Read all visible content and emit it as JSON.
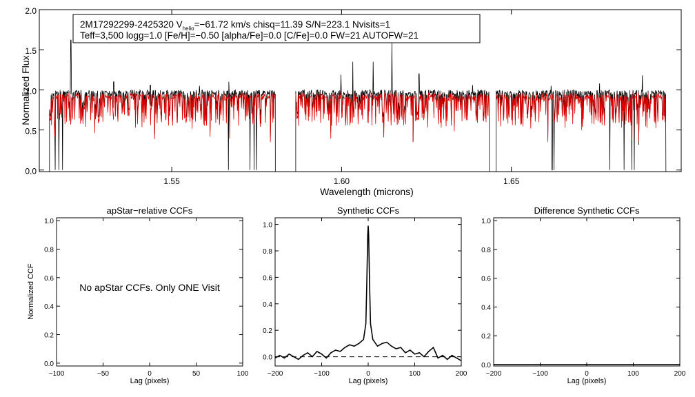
{
  "figure": {
    "info_box": {
      "line1": {
        "star_id": "2M17292299-2425320",
        "v_prefix": "V",
        "v_subscript": "helio",
        "after_v": "=−61.72 km/s  chisq=11.39  S/N=223.1  Nvisits=1"
      },
      "line2": "Teff=3,500 logg=1.0 [Fe/H]=−0.50 [alpha/Fe]=0.0 [C/Fe]=0.0 FW=21 AUTOFW=21"
    },
    "panel_titles": {
      "apstar": "apStar−relative CCFs",
      "synthetic": "Synthetic CCFs",
      "difference": "Difference Synthetic CCFs"
    },
    "apstar_note": "No apStar CCFs.  Only ONE Visit"
  },
  "chart_data": [
    {
      "id": "spectrum",
      "type": "line",
      "title": "",
      "xlabel": "Wavelength (microns)",
      "ylabel": "Normalized Flux",
      "xlim": [
        1.511,
        1.7
      ],
      "ylim": [
        -0.02,
        2.0
      ],
      "xticks": [
        1.55,
        1.6,
        1.65
      ],
      "xtick_labels": [
        "1.55",
        "1.60",
        "1.65"
      ],
      "yticks": [
        0.0,
        0.5,
        1.0,
        1.5,
        2.0
      ],
      "ytick_labels": [
        "0.0",
        "0.5",
        "1.0",
        "1.5",
        "2.0"
      ],
      "segments": [
        [
          1.514,
          1.5805
        ],
        [
          1.5865,
          1.6435
        ],
        [
          1.6455,
          1.6955
        ]
      ],
      "series": [
        {
          "name": "observed",
          "color": "#000000",
          "continuum": 0.95
        },
        {
          "name": "model",
          "color": "#e00000",
          "continuum": 0.92
        }
      ],
      "emission_spikes": [
        {
          "x": 1.5203,
          "y": 1.62
        },
        {
          "x": 1.5329,
          "y": 1.1
        },
        {
          "x": 1.5437,
          "y": 1.06
        },
        {
          "x": 1.5582,
          "y": 1.05
        },
        {
          "x": 1.5668,
          "y": 1.1
        },
        {
          "x": 1.5998,
          "y": 1.19
        },
        {
          "x": 1.6033,
          "y": 1.35
        },
        {
          "x": 1.6093,
          "y": 1.35
        },
        {
          "x": 1.6148,
          "y": 1.6
        },
        {
          "x": 1.6228,
          "y": 1.2
        },
        {
          "x": 1.6386,
          "y": 1.06
        },
        {
          "x": 1.6617,
          "y": 1.05
        },
        {
          "x": 1.676,
          "y": 1.08
        },
        {
          "x": 1.6886,
          "y": 1.18
        }
      ],
      "absorption_drops": [
        {
          "x": 1.5157,
          "y": 0.0
        },
        {
          "x": 1.5168,
          "y": 0.0
        },
        {
          "x": 1.5178,
          "y": 0.0
        },
        {
          "x": 1.5667,
          "y": 0.0
        },
        {
          "x": 1.573,
          "y": 0.0
        },
        {
          "x": 1.5742,
          "y": 0.0
        },
        {
          "x": 1.575,
          "y": 0.0
        },
        {
          "x": 1.662,
          "y": 0.0
        },
        {
          "x": 1.6625,
          "y": 0.0
        },
        {
          "x": 1.679,
          "y": 0.0
        },
        {
          "x": 1.6832,
          "y": 0.0
        },
        {
          "x": 1.6855,
          "y": 0.0
        },
        {
          "x": 1.6862,
          "y": 0.0
        }
      ]
    },
    {
      "id": "apstar_ccf",
      "type": "line",
      "title": "apStar−relative CCFs",
      "xlabel": "Lag (pixels)",
      "ylabel": "Normalized CCF",
      "xlim": [
        -100,
        100
      ],
      "ylim": [
        -0.02,
        1.02
      ],
      "xticks": [
        -100,
        -50,
        0,
        50,
        100
      ],
      "xtick_labels": [
        "−100",
        "−50",
        "0",
        "50",
        "100"
      ],
      "yticks": [
        0.0,
        0.2,
        0.4,
        0.6,
        0.8,
        1.0
      ],
      "ytick_labels": [
        "0.0",
        "0.2",
        "0.4",
        "0.6",
        "0.8",
        "1.0"
      ],
      "series": []
    },
    {
      "id": "synthetic_ccf",
      "type": "line",
      "title": "Synthetic CCFs",
      "xlabel": "Lag (pixels)",
      "ylabel": "",
      "xlim": [
        -200,
        200
      ],
      "ylim": [
        -0.07,
        1.05
      ],
      "xticks": [
        -200,
        -100,
        0,
        100,
        200
      ],
      "xtick_labels": [
        "−200",
        "−100",
        "0",
        "100",
        "200"
      ],
      "yticks": [
        0.0,
        0.2,
        0.4,
        0.6,
        0.8,
        1.0
      ],
      "ytick_labels": [
        "0.0",
        "0.2",
        "0.4",
        "0.6",
        "0.8",
        "1.0"
      ],
      "zero_line": {
        "y": 0.0,
        "style": "dashed"
      },
      "series": [
        {
          "name": "ccf",
          "color": "#000000",
          "x": [
            -200,
            -190,
            -180,
            -170,
            -160,
            -150,
            -140,
            -130,
            -120,
            -110,
            -100,
            -90,
            -80,
            -70,
            -60,
            -50,
            -40,
            -30,
            -20,
            -10,
            -5,
            -3,
            -1,
            0,
            1,
            3,
            5,
            10,
            20,
            30,
            40,
            50,
            60,
            70,
            80,
            90,
            100,
            110,
            120,
            130,
            140,
            150,
            160,
            170,
            180,
            190,
            200
          ],
          "y": [
            -0.01,
            0.01,
            -0.01,
            0.02,
            0.0,
            -0.02,
            0.01,
            0.03,
            0.0,
            0.04,
            0.02,
            -0.01,
            0.03,
            0.05,
            0.04,
            0.07,
            0.09,
            0.08,
            0.1,
            0.13,
            0.25,
            0.55,
            0.92,
            0.99,
            0.92,
            0.55,
            0.25,
            0.13,
            0.08,
            0.1,
            0.11,
            0.08,
            0.06,
            0.07,
            0.03,
            0.05,
            0.02,
            0.03,
            0.0,
            0.04,
            0.07,
            -0.01,
            0.01,
            -0.02,
            0.01,
            -0.01,
            -0.03
          ]
        }
      ]
    },
    {
      "id": "difference_ccf",
      "type": "line",
      "title": "Difference Synthetic CCFs",
      "xlabel": "Lag (pixels)",
      "ylabel": "",
      "xlim": [
        -200,
        200
      ],
      "ylim": [
        -0.01,
        1.02
      ],
      "xticks": [
        -200,
        -100,
        0,
        100,
        200
      ],
      "xtick_labels": [
        "−200",
        "−100",
        "0",
        "100",
        "200"
      ],
      "yticks": [
        0.0,
        0.2,
        0.4,
        0.6,
        0.8,
        1.0
      ],
      "ytick_labels": [
        "0.0",
        "0.2",
        "0.4",
        "0.6",
        "0.8",
        "1.0"
      ],
      "series": [
        {
          "name": "difference",
          "color": "#000000",
          "x": [
            -200,
            200
          ],
          "y": [
            0.0,
            0.0
          ]
        }
      ]
    }
  ]
}
